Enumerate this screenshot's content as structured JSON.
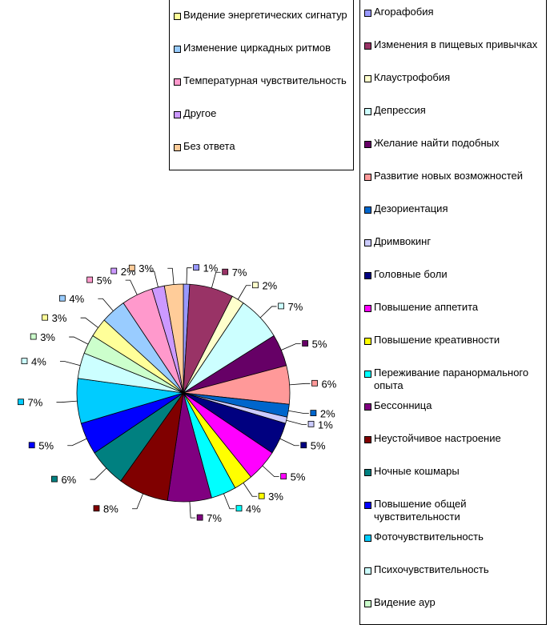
{
  "chart_data": {
    "type": "pie",
    "slices": [
      {
        "label": "Агорафобия",
        "value": 1,
        "pct_label": "1%",
        "color": "#9999ff"
      },
      {
        "label": "Изменения в пищевых привычках",
        "value": 7,
        "pct_label": "7%",
        "color": "#993366"
      },
      {
        "label": "Клаустрофобия",
        "value": 2,
        "pct_label": "2%",
        "color": "#ffffcc"
      },
      {
        "label": "Депрессия",
        "value": 7,
        "pct_label": "7%",
        "color": "#ccffff"
      },
      {
        "label": "Желание найти подобных",
        "value": 5,
        "pct_label": "5%",
        "color": "#660066"
      },
      {
        "label": "Развитие новых возможностей",
        "value": 6,
        "pct_label": "6%",
        "color": "#ff9999"
      },
      {
        "label": "Дезориентация",
        "value": 2,
        "pct_label": "2%",
        "color": "#0066cc"
      },
      {
        "label": "Дримвокинг",
        "value": 1,
        "pct_label": "1%",
        "color": "#ccccff"
      },
      {
        "label": "Головные боли",
        "value": 5,
        "pct_label": "5%",
        "color": "#000080"
      },
      {
        "label": "Повышение аппетита",
        "value": 5,
        "pct_label": "5%",
        "color": "#ff00ff"
      },
      {
        "label": "Повышение креативности",
        "value": 3,
        "pct_label": "3%",
        "color": "#ffff00"
      },
      {
        "label": "Переживание паранормального опыта",
        "value": 4,
        "pct_label": "4%",
        "color": "#00ffff"
      },
      {
        "label": "Бессонница",
        "value": 7,
        "pct_label": "7%",
        "color": "#800080"
      },
      {
        "label": "Неустойчивое настроение",
        "value": 8,
        "pct_label": "8%",
        "color": "#800000"
      },
      {
        "label": "Ночные кошмары",
        "value": 6,
        "pct_label": "6%",
        "color": "#008080"
      },
      {
        "label": "Повышение общей чувствительности",
        "value": 5,
        "pct_label": "5%",
        "color": "#0000ff"
      },
      {
        "label": "Фоточувствительность",
        "value": 7,
        "pct_label": "7%",
        "color": "#00ccff"
      },
      {
        "label": "Психочувствительность",
        "value": 4,
        "pct_label": "4%",
        "color": "#ccffff"
      },
      {
        "label": "Видение аур",
        "value": 3,
        "pct_label": "3%",
        "color": "#ccffcc"
      },
      {
        "label": "Видение энергетических сигнатур",
        "value": 3,
        "pct_label": "3%",
        "color": "#ffff99"
      },
      {
        "label": "Изменение циркадных ритмов",
        "value": 4,
        "pct_label": "4%",
        "color": "#99ccff"
      },
      {
        "label": "Температурная чувствительность",
        "value": 5,
        "pct_label": "5%",
        "color": "#ff99cc"
      },
      {
        "label": "Другое",
        "value": 2,
        "pct_label": "2%",
        "color": "#cc99ff"
      },
      {
        "label": "Без ответа",
        "value": 3,
        "pct_label": "3%",
        "color": "#ffcc99"
      }
    ],
    "legend_placement": "right"
  }
}
